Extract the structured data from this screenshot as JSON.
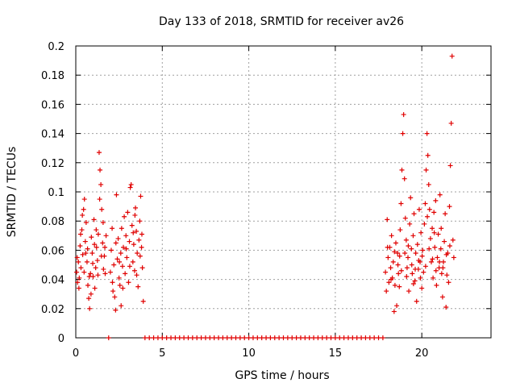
{
  "chart_data": {
    "type": "scatter",
    "title": "Day 133 of 2018, SRMTID for receiver av26",
    "xlabel": "GPS time / hours",
    "ylabel": "SRMTID / TECUs",
    "xlim": [
      0,
      24
    ],
    "ylim": [
      0,
      0.2
    ],
    "xticks": [
      0,
      5,
      10,
      15,
      20
    ],
    "xtick_labels": [
      "0",
      "5",
      "10",
      "15",
      "20"
    ],
    "yticks": [
      0,
      0.02,
      0.04,
      0.06,
      0.08,
      0.1,
      0.12,
      0.14,
      0.16,
      0.18,
      0.2
    ],
    "ytick_labels": [
      "0",
      "0.02",
      "0.04",
      "0.06",
      "0.08",
      "0.1",
      "0.12",
      "0.14",
      "0.16",
      "0.18",
      "0.2"
    ],
    "grid": true,
    "marker": "+",
    "color": "#e00000",
    "series": [
      {
        "name": "SRMTID",
        "points": [
          [
            0.05,
            0.045
          ],
          [
            0.1,
            0.038
          ],
          [
            0.15,
            0.052
          ],
          [
            0.2,
            0.041
          ],
          [
            0.25,
            0.063
          ],
          [
            0.3,
            0.048
          ],
          [
            0.35,
            0.074
          ],
          [
            0.4,
            0.057
          ],
          [
            0.45,
            0.088
          ],
          [
            0.5,
            0.095
          ],
          [
            0.55,
            0.066
          ],
          [
            0.6,
            0.079
          ],
          [
            0.65,
            0.052
          ],
          [
            0.7,
            0.036
          ],
          [
            0.75,
            0.027
          ],
          [
            0.8,
            0.02
          ],
          [
            0.85,
            0.044
          ],
          [
            0.9,
            0.069
          ],
          [
            0.95,
            0.058
          ],
          [
            1.0,
            0.042
          ],
          [
            1.05,
            0.081
          ],
          [
            1.1,
            0.034
          ],
          [
            1.15,
            0.048
          ],
          [
            1.2,
            0.062
          ],
          [
            1.25,
            0.053
          ],
          [
            1.3,
            0.071
          ],
          [
            1.35,
            0.127
          ],
          [
            1.4,
            0.115
          ],
          [
            1.45,
            0.105
          ],
          [
            1.5,
            0.088
          ],
          [
            1.55,
            0.065
          ],
          [
            1.6,
            0.047
          ],
          [
            1.65,
            0.056
          ],
          [
            1.7,
            0.044
          ],
          [
            1.75,
            0.07
          ],
          [
            0.08,
            0.055
          ],
          [
            0.18,
            0.034
          ],
          [
            0.28,
            0.071
          ],
          [
            0.38,
            0.084
          ],
          [
            0.48,
            0.045
          ],
          [
            0.58,
            0.058
          ],
          [
            0.68,
            0.061
          ],
          [
            0.78,
            0.042
          ],
          [
            0.88,
            0.03
          ],
          [
            0.98,
            0.051
          ],
          [
            1.08,
            0.064
          ],
          [
            1.18,
            0.074
          ],
          [
            1.28,
            0.043
          ],
          [
            1.38,
            0.095
          ],
          [
            1.48,
            0.056
          ],
          [
            1.58,
            0.079
          ],
          [
            1.68,
            0.062
          ],
          [
            2.0,
            0.045
          ],
          [
            2.05,
            0.06
          ],
          [
            2.1,
            0.075
          ],
          [
            2.15,
            0.032
          ],
          [
            2.2,
            0.05
          ],
          [
            2.25,
            0.028
          ],
          [
            2.3,
            0.019
          ],
          [
            2.35,
            0.098
          ],
          [
            2.4,
            0.054
          ],
          [
            2.45,
            0.068
          ],
          [
            2.5,
            0.041
          ],
          [
            2.55,
            0.036
          ],
          [
            2.6,
            0.058
          ],
          [
            2.65,
            0.075
          ],
          [
            2.7,
            0.049
          ],
          [
            2.75,
            0.062
          ],
          [
            2.8,
            0.083
          ],
          [
            2.85,
            0.044
          ],
          [
            2.9,
            0.07
          ],
          [
            2.95,
            0.055
          ],
          [
            3.0,
            0.086
          ],
          [
            3.05,
            0.038
          ],
          [
            3.1,
            0.066
          ],
          [
            3.15,
            0.103
          ],
          [
            3.2,
            0.105
          ],
          [
            3.25,
            0.077
          ],
          [
            3.3,
            0.052
          ],
          [
            3.35,
            0.064
          ],
          [
            3.4,
            0.046
          ],
          [
            3.45,
            0.089
          ],
          [
            3.5,
            0.073
          ],
          [
            3.55,
            0.058
          ],
          [
            3.6,
            0.035
          ],
          [
            3.65,
            0.067
          ],
          [
            3.7,
            0.08
          ],
          [
            3.75,
            0.097
          ],
          [
            3.8,
            0.062
          ],
          [
            3.85,
            0.048
          ],
          [
            3.9,
            0.025
          ],
          [
            2.12,
            0.038
          ],
          [
            2.32,
            0.065
          ],
          [
            2.52,
            0.052
          ],
          [
            2.72,
            0.034
          ],
          [
            2.92,
            0.061
          ],
          [
            3.12,
            0.049
          ],
          [
            3.32,
            0.072
          ],
          [
            3.52,
            0.043
          ],
          [
            3.72,
            0.056
          ],
          [
            3.82,
            0.071
          ],
          [
            2.62,
            0.022
          ],
          [
            3.42,
            0.084
          ],
          [
            1.9,
            0.0
          ],
          [
            4.0,
            0.0
          ],
          [
            4.25,
            0.0
          ],
          [
            4.5,
            0.0
          ],
          [
            4.75,
            0.0
          ],
          [
            5.0,
            0.0
          ],
          [
            5.25,
            0.0
          ],
          [
            5.5,
            0.0
          ],
          [
            5.75,
            0.0
          ],
          [
            6.0,
            0.0
          ],
          [
            6.25,
            0.0
          ],
          [
            6.5,
            0.0
          ],
          [
            6.75,
            0.0
          ],
          [
            7.0,
            0.0
          ],
          [
            7.25,
            0.0
          ],
          [
            7.5,
            0.0
          ],
          [
            7.75,
            0.0
          ],
          [
            8.0,
            0.0
          ],
          [
            8.25,
            0.0
          ],
          [
            8.5,
            0.0
          ],
          [
            8.75,
            0.0
          ],
          [
            9.0,
            0.0
          ],
          [
            9.25,
            0.0
          ],
          [
            9.5,
            0.0
          ],
          [
            9.75,
            0.0
          ],
          [
            10.0,
            0.0
          ],
          [
            10.25,
            0.0
          ],
          [
            10.5,
            0.0
          ],
          [
            10.75,
            0.0
          ],
          [
            11.0,
            0.0
          ],
          [
            11.25,
            0.0
          ],
          [
            11.5,
            0.0
          ],
          [
            11.75,
            0.0
          ],
          [
            12.0,
            0.0
          ],
          [
            12.25,
            0.0
          ],
          [
            12.5,
            0.0
          ],
          [
            12.75,
            0.0
          ],
          [
            13.0,
            0.0
          ],
          [
            13.25,
            0.0
          ],
          [
            13.5,
            0.0
          ],
          [
            13.75,
            0.0
          ],
          [
            14.0,
            0.0
          ],
          [
            14.25,
            0.0
          ],
          [
            14.5,
            0.0
          ],
          [
            14.75,
            0.0
          ],
          [
            15.0,
            0.0
          ],
          [
            15.25,
            0.0
          ],
          [
            15.5,
            0.0
          ],
          [
            15.75,
            0.0
          ],
          [
            16.0,
            0.0
          ],
          [
            16.25,
            0.0
          ],
          [
            16.5,
            0.0
          ],
          [
            16.75,
            0.0
          ],
          [
            17.0,
            0.0
          ],
          [
            17.25,
            0.0
          ],
          [
            17.5,
            0.0
          ],
          [
            17.75,
            0.0
          ],
          [
            17.9,
            0.045
          ],
          [
            17.95,
            0.032
          ],
          [
            18.0,
            0.081
          ],
          [
            18.05,
            0.055
          ],
          [
            18.1,
            0.038
          ],
          [
            18.15,
            0.062
          ],
          [
            18.2,
            0.048
          ],
          [
            18.25,
            0.07
          ],
          [
            18.3,
            0.041
          ],
          [
            18.35,
            0.052
          ],
          [
            18.4,
            0.018
          ],
          [
            18.45,
            0.036
          ],
          [
            18.5,
            0.065
          ],
          [
            18.55,
            0.022
          ],
          [
            18.6,
            0.058
          ],
          [
            18.65,
            0.044
          ],
          [
            18.7,
            0.035
          ],
          [
            18.75,
            0.074
          ],
          [
            18.8,
            0.092
          ],
          [
            18.85,
            0.115
          ],
          [
            18.9,
            0.14
          ],
          [
            18.95,
            0.153
          ],
          [
            19.0,
            0.109
          ],
          [
            19.05,
            0.082
          ],
          [
            19.1,
            0.067
          ],
          [
            19.15,
            0.048
          ],
          [
            19.2,
            0.055
          ],
          [
            19.25,
            0.032
          ],
          [
            19.3,
            0.078
          ],
          [
            19.35,
            0.096
          ],
          [
            19.4,
            0.061
          ],
          [
            19.45,
            0.044
          ],
          [
            19.5,
            0.07
          ],
          [
            19.55,
            0.085
          ],
          [
            19.6,
            0.039
          ],
          [
            19.65,
            0.058
          ],
          [
            19.7,
            0.025
          ],
          [
            19.75,
            0.064
          ],
          [
            19.8,
            0.047
          ],
          [
            19.85,
            0.088
          ],
          [
            19.9,
            0.052
          ],
          [
            19.95,
            0.072
          ],
          [
            20.0,
            0.034
          ],
          [
            20.05,
            0.06
          ],
          [
            20.1,
            0.045
          ],
          [
            20.15,
            0.078
          ],
          [
            20.2,
            0.092
          ],
          [
            20.25,
            0.115
          ],
          [
            20.3,
            0.14
          ],
          [
            20.35,
            0.125
          ],
          [
            20.4,
            0.105
          ],
          [
            20.45,
            0.088
          ],
          [
            20.5,
            0.068
          ],
          [
            20.55,
            0.052
          ],
          [
            20.6,
            0.075
          ],
          [
            20.65,
            0.041
          ],
          [
            20.7,
            0.086
          ],
          [
            20.75,
            0.062
          ],
          [
            20.8,
            0.094
          ],
          [
            20.85,
            0.036
          ],
          [
            20.9,
            0.055
          ],
          [
            20.95,
            0.071
          ],
          [
            21.0,
            0.048
          ],
          [
            21.05,
            0.098
          ],
          [
            21.1,
            0.061
          ],
          [
            21.15,
            0.044
          ],
          [
            21.2,
            0.028
          ],
          [
            21.25,
            0.052
          ],
          [
            21.3,
            0.066
          ],
          [
            21.35,
            0.085
          ],
          [
            21.4,
            0.021
          ],
          [
            21.45,
            0.043
          ],
          [
            21.5,
            0.058
          ],
          [
            21.55,
            0.038
          ],
          [
            21.6,
            0.09
          ],
          [
            21.65,
            0.118
          ],
          [
            21.7,
            0.147
          ],
          [
            21.75,
            0.193
          ],
          [
            21.8,
            0.067
          ],
          [
            21.85,
            0.055
          ],
          [
            18.02,
            0.062
          ],
          [
            18.22,
            0.04
          ],
          [
            18.42,
            0.059
          ],
          [
            18.62,
            0.05
          ],
          [
            18.82,
            0.046
          ],
          [
            19.02,
            0.058
          ],
          [
            19.22,
            0.063
          ],
          [
            19.42,
            0.05
          ],
          [
            19.62,
            0.047
          ],
          [
            19.82,
            0.053
          ],
          [
            20.02,
            0.056
          ],
          [
            20.22,
            0.049
          ],
          [
            20.42,
            0.061
          ],
          [
            20.62,
            0.054
          ],
          [
            20.82,
            0.046
          ],
          [
            21.02,
            0.052
          ],
          [
            21.22,
            0.048
          ],
          [
            21.42,
            0.057
          ],
          [
            21.62,
            0.063
          ],
          [
            18.72,
            0.056
          ],
          [
            19.12,
            0.042
          ],
          [
            19.52,
            0.037
          ],
          [
            19.92,
            0.041
          ],
          [
            20.32,
            0.083
          ],
          [
            20.72,
            0.072
          ],
          [
            21.12,
            0.075
          ]
        ]
      }
    ]
  }
}
